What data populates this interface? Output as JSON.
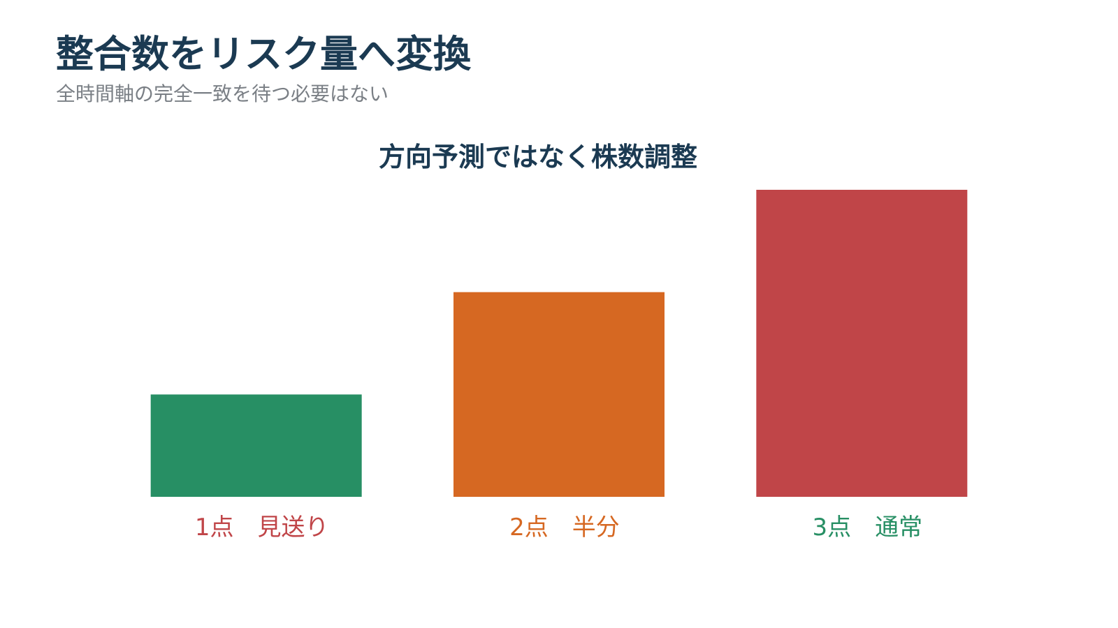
{
  "slide": {
    "title": "整合数をリスク量へ変換",
    "subtitle": "全時間軸の完全一致を待つ必要はない"
  },
  "chart_data": {
    "type": "bar",
    "title": "方向予測ではなく株数調整",
    "categories": [
      "1点　見送り",
      "2点　半分",
      "3点　通常"
    ],
    "values": [
      1,
      2,
      3
    ],
    "ylim": [
      0,
      3
    ],
    "grid": false,
    "legend": "none",
    "bar_colors": [
      "#278f64",
      "#d66822",
      "#c04548"
    ],
    "label_colors": [
      "#c04548",
      "#d66822",
      "#278f64"
    ]
  }
}
